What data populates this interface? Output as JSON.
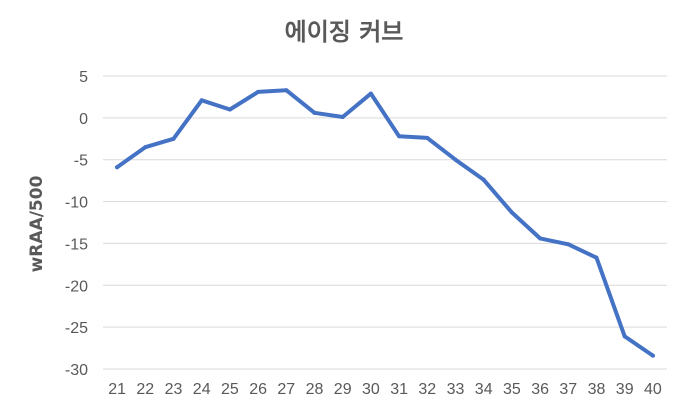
{
  "chart_data": {
    "type": "line",
    "title": "에이징 커브",
    "xlabel": "",
    "ylabel": "wRAA/500",
    "x": [
      21,
      22,
      23,
      24,
      25,
      26,
      27,
      28,
      29,
      30,
      31,
      32,
      33,
      34,
      35,
      36,
      37,
      38,
      39,
      40
    ],
    "x_tick_labels": [
      "21",
      "22",
      "23",
      "24",
      "25",
      "26",
      "27",
      "28",
      "29",
      "30",
      "31",
      "32",
      "33",
      "34",
      "35",
      "36",
      "37",
      "38",
      "39",
      "40"
    ],
    "series": [
      {
        "values": [
          -5.9,
          -3.5,
          -2.5,
          2.1,
          1.0,
          3.1,
          3.3,
          0.6,
          0.1,
          2.9,
          -2.2,
          -2.4,
          -5.0,
          -7.4,
          -11.3,
          -14.4,
          -15.1,
          -16.7,
          -26.1,
          -28.4
        ],
        "color": "#4472c4"
      }
    ],
    "yticks": [
      5,
      0,
      -5,
      -10,
      -15,
      -20,
      -25,
      -30
    ],
    "y_tick_labels": [
      "5",
      "0",
      "-5",
      "-10",
      "-15",
      "-20",
      "-25",
      "-30"
    ],
    "ylim": [
      -30,
      5
    ],
    "grid": true,
    "legend": "none"
  }
}
